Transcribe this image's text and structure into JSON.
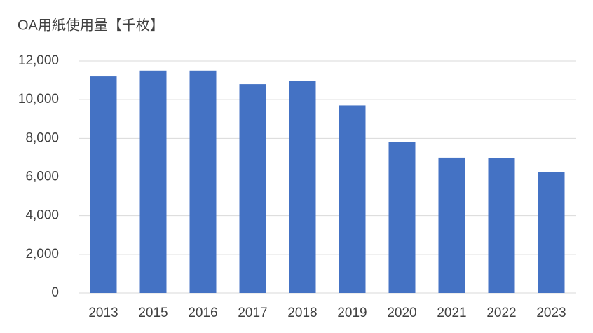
{
  "chart_data": {
    "type": "bar",
    "title": "OA用紙使用量【千枚】",
    "categories": [
      "2013",
      "2015",
      "2016",
      "2017",
      "2018",
      "2019",
      "2020",
      "2021",
      "2022",
      "2023"
    ],
    "values": [
      11200,
      11500,
      11500,
      10800,
      10950,
      9700,
      7800,
      7000,
      6980,
      6250
    ],
    "color": "#4472c4",
    "ylim": [
      0,
      12000
    ],
    "yticks": [
      0,
      {
        "value": 2000,
        "label": "2,000"
      },
      {
        "value": 4000,
        "label": "4,000"
      },
      {
        "value": 6000,
        "label": "6,000"
      },
      {
        "value": 8000,
        "label": "8,000"
      },
      {
        "value": 10000,
        "label": "10,000"
      },
      {
        "value": 12000,
        "label": "12,000"
      }
    ],
    "grid": true
  }
}
